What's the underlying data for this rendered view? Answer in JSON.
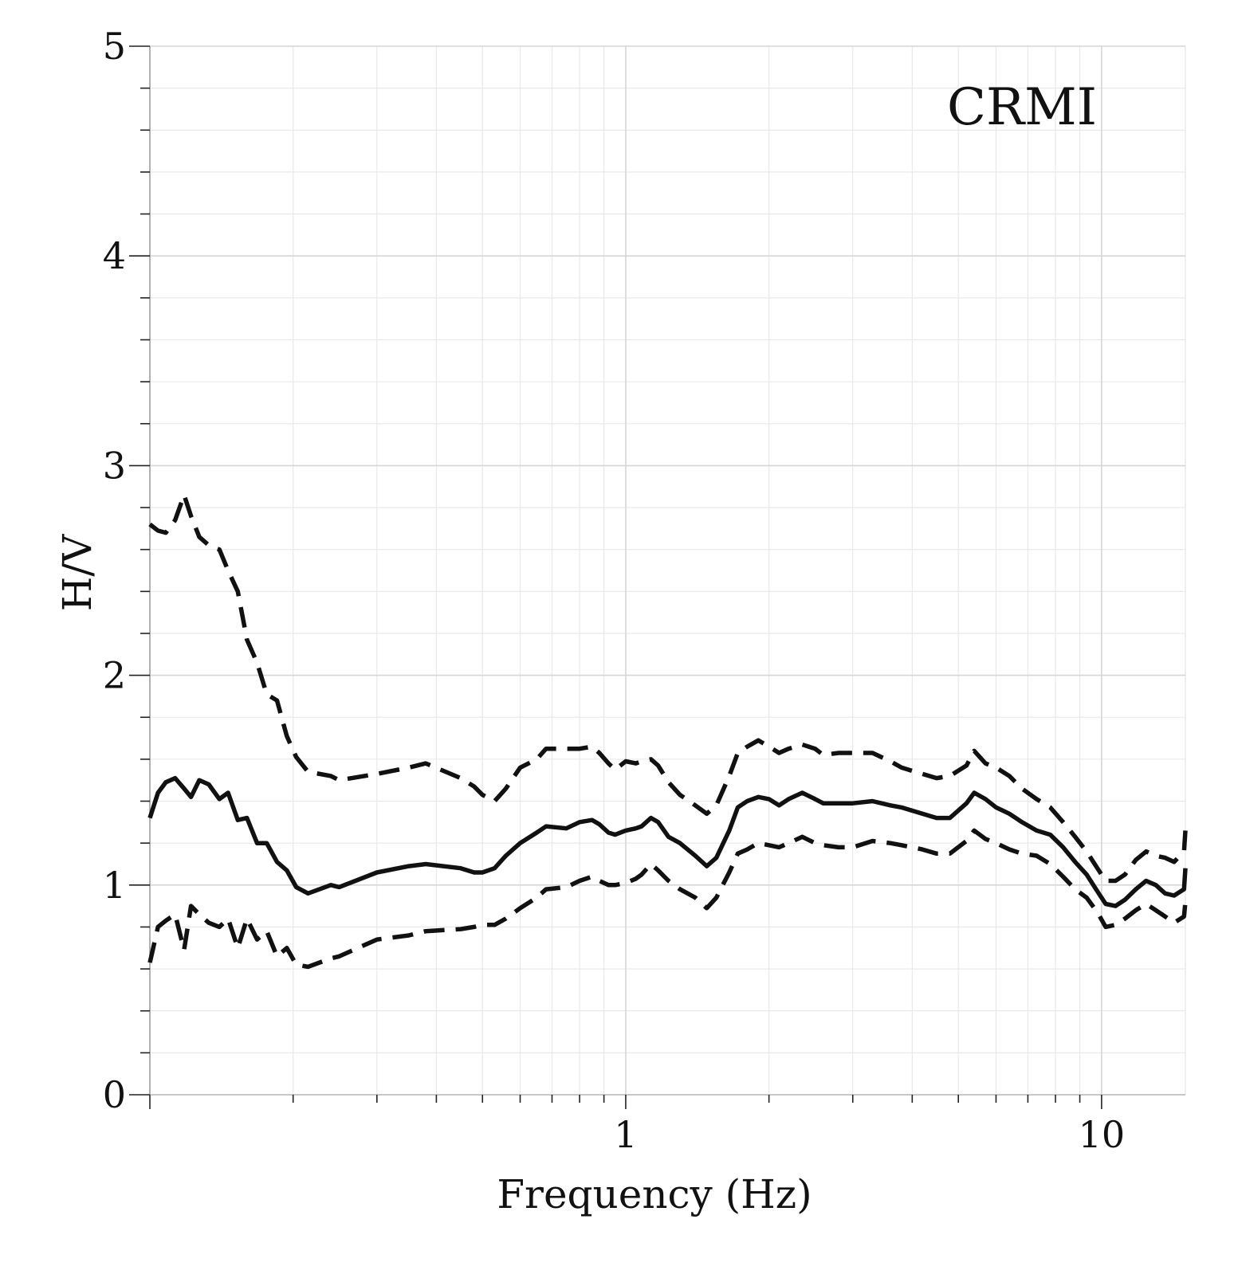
{
  "chart_data": {
    "type": "line",
    "title": "",
    "annotation": "CRMI",
    "xlabel": "Frequency (Hz)",
    "ylabel": "H/V",
    "xscale": "log",
    "xlim": [
      0.1,
      15
    ],
    "ylim": [
      0,
      5
    ],
    "x_ticks": [
      1,
      10
    ],
    "x_tick_labels": [
      "1",
      "10"
    ],
    "y_ticks": [
      0,
      1,
      2,
      3,
      4,
      5
    ],
    "y_tick_labels": [
      "0",
      "1",
      "2",
      "3",
      "4",
      "5"
    ],
    "grid": true,
    "legend": "none",
    "series": [
      {
        "style": "solid",
        "color": "#111111",
        "points": [
          [
            0.1,
            1.32
          ],
          [
            0.104,
            1.44
          ],
          [
            0.108,
            1.49
          ],
          [
            0.113,
            1.51
          ],
          [
            0.118,
            1.46
          ],
          [
            0.122,
            1.42
          ],
          [
            0.127,
            1.5
          ],
          [
            0.133,
            1.48
          ],
          [
            0.14,
            1.41
          ],
          [
            0.146,
            1.44
          ],
          [
            0.153,
            1.31
          ],
          [
            0.16,
            1.32
          ],
          [
            0.168,
            1.2
          ],
          [
            0.176,
            1.2
          ],
          [
            0.185,
            1.11
          ],
          [
            0.194,
            1.07
          ],
          [
            0.203,
            0.99
          ],
          [
            0.215,
            0.96
          ],
          [
            0.24,
            1.0
          ],
          [
            0.25,
            0.99
          ],
          [
            0.3,
            1.06
          ],
          [
            0.35,
            1.09
          ],
          [
            0.38,
            1.1
          ],
          [
            0.45,
            1.08
          ],
          [
            0.48,
            1.06
          ],
          [
            0.5,
            1.06
          ],
          [
            0.53,
            1.08
          ],
          [
            0.56,
            1.14
          ],
          [
            0.6,
            1.2
          ],
          [
            0.65,
            1.25
          ],
          [
            0.68,
            1.28
          ],
          [
            0.75,
            1.27
          ],
          [
            0.8,
            1.3
          ],
          [
            0.85,
            1.31
          ],
          [
            0.88,
            1.29
          ],
          [
            0.92,
            1.25
          ],
          [
            0.95,
            1.24
          ],
          [
            1.0,
            1.26
          ],
          [
            1.05,
            1.27
          ],
          [
            1.08,
            1.28
          ],
          [
            1.13,
            1.32
          ],
          [
            1.17,
            1.3
          ],
          [
            1.23,
            1.23
          ],
          [
            1.3,
            1.2
          ],
          [
            1.4,
            1.14
          ],
          [
            1.48,
            1.09
          ],
          [
            1.55,
            1.13
          ],
          [
            1.65,
            1.26
          ],
          [
            1.72,
            1.37
          ],
          [
            1.8,
            1.4
          ],
          [
            1.9,
            1.42
          ],
          [
            2.0,
            1.41
          ],
          [
            2.1,
            1.38
          ],
          [
            2.2,
            1.41
          ],
          [
            2.35,
            1.44
          ],
          [
            2.5,
            1.41
          ],
          [
            2.6,
            1.39
          ],
          [
            2.8,
            1.39
          ],
          [
            3.0,
            1.39
          ],
          [
            3.3,
            1.4
          ],
          [
            3.6,
            1.38
          ],
          [
            3.8,
            1.37
          ],
          [
            4.2,
            1.34
          ],
          [
            4.5,
            1.32
          ],
          [
            4.8,
            1.32
          ],
          [
            5.2,
            1.39
          ],
          [
            5.4,
            1.44
          ],
          [
            5.7,
            1.41
          ],
          [
            6.0,
            1.37
          ],
          [
            6.4,
            1.34
          ],
          [
            6.8,
            1.3
          ],
          [
            7.3,
            1.26
          ],
          [
            7.8,
            1.24
          ],
          [
            8.3,
            1.18
          ],
          [
            8.8,
            1.11
          ],
          [
            9.3,
            1.05
          ],
          [
            9.8,
            0.97
          ],
          [
            10.2,
            0.91
          ],
          [
            10.7,
            0.9
          ],
          [
            11.2,
            0.93
          ],
          [
            11.8,
            0.98
          ],
          [
            12.4,
            1.02
          ],
          [
            13.0,
            1.0
          ],
          [
            13.6,
            0.96
          ],
          [
            14.2,
            0.95
          ],
          [
            14.9,
            0.98
          ],
          [
            15.0,
            1.08
          ]
        ]
      },
      {
        "style": "dashed",
        "color": "#111111",
        "points": [
          [
            0.1,
            2.72
          ],
          [
            0.104,
            2.69
          ],
          [
            0.108,
            2.68
          ],
          [
            0.113,
            2.74
          ],
          [
            0.118,
            2.86
          ],
          [
            0.122,
            2.76
          ],
          [
            0.127,
            2.66
          ],
          [
            0.133,
            2.62
          ],
          [
            0.14,
            2.6
          ],
          [
            0.146,
            2.5
          ],
          [
            0.153,
            2.4
          ],
          [
            0.16,
            2.17
          ],
          [
            0.168,
            2.06
          ],
          [
            0.176,
            1.91
          ],
          [
            0.185,
            1.88
          ],
          [
            0.194,
            1.71
          ],
          [
            0.203,
            1.61
          ],
          [
            0.215,
            1.54
          ],
          [
            0.24,
            1.52
          ],
          [
            0.25,
            1.5
          ],
          [
            0.3,
            1.53
          ],
          [
            0.35,
            1.56
          ],
          [
            0.38,
            1.58
          ],
          [
            0.45,
            1.51
          ],
          [
            0.48,
            1.47
          ],
          [
            0.5,
            1.43
          ],
          [
            0.53,
            1.4
          ],
          [
            0.56,
            1.46
          ],
          [
            0.6,
            1.56
          ],
          [
            0.65,
            1.6
          ],
          [
            0.68,
            1.65
          ],
          [
            0.75,
            1.65
          ],
          [
            0.8,
            1.65
          ],
          [
            0.85,
            1.66
          ],
          [
            0.88,
            1.63
          ],
          [
            0.92,
            1.58
          ],
          [
            0.95,
            1.55
          ],
          [
            1.0,
            1.59
          ],
          [
            1.05,
            1.58
          ],
          [
            1.08,
            1.59
          ],
          [
            1.13,
            1.6
          ],
          [
            1.17,
            1.57
          ],
          [
            1.23,
            1.49
          ],
          [
            1.3,
            1.43
          ],
          [
            1.4,
            1.38
          ],
          [
            1.48,
            1.34
          ],
          [
            1.55,
            1.38
          ],
          [
            1.65,
            1.52
          ],
          [
            1.72,
            1.63
          ],
          [
            1.8,
            1.66
          ],
          [
            1.9,
            1.69
          ],
          [
            2.0,
            1.66
          ],
          [
            2.1,
            1.63
          ],
          [
            2.2,
            1.65
          ],
          [
            2.35,
            1.67
          ],
          [
            2.5,
            1.65
          ],
          [
            2.6,
            1.62
          ],
          [
            2.8,
            1.63
          ],
          [
            3.0,
            1.63
          ],
          [
            3.3,
            1.63
          ],
          [
            3.6,
            1.59
          ],
          [
            3.8,
            1.56
          ],
          [
            4.2,
            1.53
          ],
          [
            4.5,
            1.51
          ],
          [
            4.8,
            1.52
          ],
          [
            5.2,
            1.57
          ],
          [
            5.4,
            1.64
          ],
          [
            5.7,
            1.58
          ],
          [
            6.0,
            1.56
          ],
          [
            6.4,
            1.52
          ],
          [
            6.8,
            1.46
          ],
          [
            7.3,
            1.41
          ],
          [
            7.8,
            1.37
          ],
          [
            8.3,
            1.3
          ],
          [
            8.8,
            1.23
          ],
          [
            9.3,
            1.16
          ],
          [
            9.8,
            1.08
          ],
          [
            10.2,
            1.02
          ],
          [
            10.7,
            1.02
          ],
          [
            11.2,
            1.05
          ],
          [
            11.8,
            1.12
          ],
          [
            12.4,
            1.16
          ],
          [
            13.0,
            1.14
          ],
          [
            13.6,
            1.13
          ],
          [
            14.2,
            1.11
          ],
          [
            14.9,
            1.16
          ],
          [
            15.0,
            1.26
          ]
        ]
      },
      {
        "style": "dashed",
        "color": "#111111",
        "points": [
          [
            0.1,
            0.63
          ],
          [
            0.104,
            0.8
          ],
          [
            0.108,
            0.83
          ],
          [
            0.113,
            0.86
          ],
          [
            0.118,
            0.69
          ],
          [
            0.122,
            0.9
          ],
          [
            0.127,
            0.86
          ],
          [
            0.133,
            0.82
          ],
          [
            0.14,
            0.8
          ],
          [
            0.146,
            0.84
          ],
          [
            0.153,
            0.7
          ],
          [
            0.16,
            0.84
          ],
          [
            0.168,
            0.74
          ],
          [
            0.176,
            0.78
          ],
          [
            0.185,
            0.66
          ],
          [
            0.194,
            0.7
          ],
          [
            0.203,
            0.62
          ],
          [
            0.215,
            0.61
          ],
          [
            0.24,
            0.65
          ],
          [
            0.25,
            0.66
          ],
          [
            0.3,
            0.74
          ],
          [
            0.35,
            0.76
          ],
          [
            0.38,
            0.78
          ],
          [
            0.45,
            0.79
          ],
          [
            0.48,
            0.8
          ],
          [
            0.5,
            0.81
          ],
          [
            0.53,
            0.81
          ],
          [
            0.56,
            0.84
          ],
          [
            0.6,
            0.89
          ],
          [
            0.65,
            0.94
          ],
          [
            0.68,
            0.98
          ],
          [
            0.75,
            0.99
          ],
          [
            0.8,
            1.02
          ],
          [
            0.85,
            1.04
          ],
          [
            0.88,
            1.02
          ],
          [
            0.92,
            1.0
          ],
          [
            0.95,
            1.0
          ],
          [
            1.0,
            1.01
          ],
          [
            1.05,
            1.03
          ],
          [
            1.08,
            1.05
          ],
          [
            1.13,
            1.1
          ],
          [
            1.17,
            1.07
          ],
          [
            1.23,
            1.02
          ],
          [
            1.3,
            0.98
          ],
          [
            1.4,
            0.94
          ],
          [
            1.48,
            0.89
          ],
          [
            1.55,
            0.94
          ],
          [
            1.65,
            1.06
          ],
          [
            1.72,
            1.15
          ],
          [
            1.8,
            1.17
          ],
          [
            1.9,
            1.2
          ],
          [
            2.0,
            1.19
          ],
          [
            2.1,
            1.18
          ],
          [
            2.2,
            1.2
          ],
          [
            2.35,
            1.23
          ],
          [
            2.5,
            1.2
          ],
          [
            2.6,
            1.19
          ],
          [
            2.8,
            1.18
          ],
          [
            3.0,
            1.18
          ],
          [
            3.3,
            1.21
          ],
          [
            3.6,
            1.2
          ],
          [
            3.8,
            1.19
          ],
          [
            4.2,
            1.17
          ],
          [
            4.5,
            1.15
          ],
          [
            4.8,
            1.15
          ],
          [
            5.2,
            1.21
          ],
          [
            5.4,
            1.26
          ],
          [
            5.7,
            1.22
          ],
          [
            6.0,
            1.2
          ],
          [
            6.4,
            1.17
          ],
          [
            6.8,
            1.15
          ],
          [
            7.3,
            1.14
          ],
          [
            7.8,
            1.1
          ],
          [
            8.3,
            1.04
          ],
          [
            8.8,
            0.98
          ],
          [
            9.3,
            0.94
          ],
          [
            9.8,
            0.87
          ],
          [
            10.2,
            0.8
          ],
          [
            10.7,
            0.81
          ],
          [
            11.2,
            0.84
          ],
          [
            11.8,
            0.88
          ],
          [
            12.4,
            0.91
          ],
          [
            13.0,
            0.88
          ],
          [
            13.6,
            0.85
          ],
          [
            14.2,
            0.82
          ],
          [
            14.9,
            0.85
          ],
          [
            15.0,
            0.92
          ]
        ]
      }
    ]
  }
}
